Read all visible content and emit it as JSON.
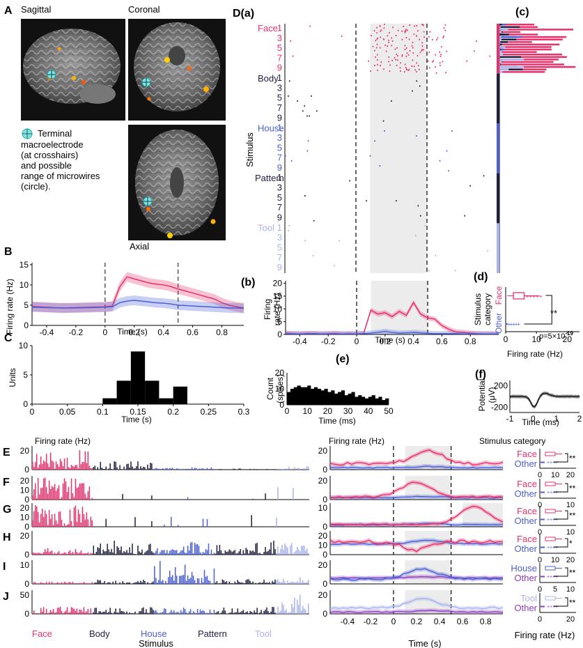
{
  "colors": {
    "face": "#e8316b",
    "body": "#1c1f3e",
    "house": "#4a5fd4",
    "pattern": "#1c1f3e",
    "tool": "#a8b3ec",
    "other": "#4a5fd4",
    "other_violet": "#8e3bbf",
    "black": "#000000"
  },
  "panelA": {
    "letter": "A",
    "sagittal": "Sagittal",
    "coronal": "Coronal",
    "axial": "Axial",
    "legend_lines": [
      "Terminal",
      "macroelectrode",
      "(at crosshairs)",
      "and possible",
      "range of microwires",
      "(circle)."
    ]
  },
  "panelB": {
    "letter": "B",
    "ylabel": "Firing rate (Hz)",
    "xlabel": "Time (s)",
    "xticks": [
      "-0.4",
      "-0.2",
      "0",
      "0.2",
      "0.4",
      "0.6",
      "0.8"
    ],
    "yticks": [
      "0",
      "5",
      "10",
      "15"
    ],
    "chart_data": {
      "type": "line",
      "xlim": [
        -0.5,
        0.95
      ],
      "ylim": [
        0,
        15.5
      ],
      "x": [
        -0.5,
        -0.4,
        -0.3,
        -0.2,
        -0.1,
        0.0,
        0.05,
        0.1,
        0.15,
        0.2,
        0.25,
        0.3,
        0.35,
        0.4,
        0.45,
        0.5,
        0.55,
        0.6,
        0.65,
        0.7,
        0.75,
        0.8,
        0.85,
        0.9,
        0.95
      ],
      "series": [
        {
          "color_key": "face",
          "values": [
            4.7,
            4.5,
            4.3,
            4.4,
            4.5,
            4.6,
            4.8,
            9.5,
            12.0,
            11.5,
            11.0,
            10.5,
            10.2,
            10.0,
            9.6,
            9.0,
            8.5,
            8.0,
            7.5,
            7.0,
            6.5,
            5.6,
            5.0,
            4.6,
            4.3
          ]
        },
        {
          "color_key": "other",
          "values": [
            4.5,
            4.4,
            4.3,
            4.3,
            4.4,
            4.5,
            4.6,
            5.6,
            6.0,
            6.2,
            6.0,
            5.8,
            5.6,
            5.5,
            5.3,
            5.0,
            4.9,
            4.8,
            4.7,
            4.6,
            4.5,
            4.4,
            4.3,
            4.3,
            4.2
          ]
        }
      ]
    }
  },
  "panelC": {
    "letter": "C",
    "ylabel": "Units",
    "xlabel": "Time (s)",
    "xticks": [
      "0",
      "0.05",
      "0.1",
      "0.15",
      "0.2",
      "0.25",
      "0.3"
    ],
    "yticks": [
      "0",
      "5",
      "10"
    ],
    "chart_data": {
      "type": "bar",
      "xlim": [
        0,
        0.3
      ],
      "ylim": [
        0,
        10
      ],
      "bin_starts": [
        0.1,
        0.12,
        0.14,
        0.16,
        0.18,
        0.2
      ],
      "bin_width": 0.02,
      "values": [
        1,
        4,
        9,
        4,
        1,
        3
      ]
    }
  },
  "panelD": {
    "title": "D(a)",
    "ylabel": "Stimulus",
    "categories": [
      {
        "name": "Face",
        "color_key": "face",
        "nums": [
          "1",
          "3",
          "5",
          "7",
          "9"
        ]
      },
      {
        "name": "Body",
        "color_key": "body",
        "nums": [
          "1",
          "3",
          "5",
          "7",
          "9"
        ]
      },
      {
        "name": "House",
        "color_key": "house",
        "nums": [
          "1",
          "3",
          "5",
          "7",
          "9"
        ]
      },
      {
        "name": "Pattern",
        "color_key": "pattern",
        "nums": [
          "1",
          "3",
          "5",
          "7",
          "9"
        ]
      },
      {
        "name": "Tool",
        "color_key": "tool",
        "nums": [
          "1",
          "3",
          "5",
          "7",
          "9"
        ]
      }
    ]
  },
  "panelDb": {
    "letter": "(b)",
    "ylabel1": "Firing",
    "ylabel2": "rate (Hz)",
    "xlabel": "Time (s)",
    "xticks": [
      "-0.4",
      "-0.2",
      "0",
      "0.2",
      "0.4",
      "0.6",
      "0.8"
    ],
    "yticks": [
      "0",
      "5",
      "10",
      "15",
      "20"
    ],
    "chart_data": {
      "type": "line",
      "xlim": [
        -0.5,
        1.0
      ],
      "ylim": [
        0,
        21
      ],
      "x": [
        -0.5,
        -0.45,
        -0.4,
        -0.35,
        -0.3,
        -0.25,
        -0.2,
        -0.15,
        -0.1,
        -0.05,
        0.0,
        0.05,
        0.1,
        0.15,
        0.2,
        0.25,
        0.3,
        0.35,
        0.4,
        0.45,
        0.5,
        0.55,
        0.6,
        0.65,
        0.7,
        0.75,
        0.8,
        0.85,
        0.9,
        0.95,
        1.0
      ],
      "series": [
        {
          "color_key": "face",
          "values": [
            0.5,
            0.3,
            0.2,
            0.4,
            0.3,
            0.2,
            0.3,
            0.4,
            0.2,
            0.3,
            0.2,
            0.4,
            9.5,
            8.0,
            8.5,
            7.0,
            9.0,
            7.5,
            12.5,
            8.0,
            6.5,
            6.0,
            3.5,
            2.0,
            1.0,
            0.8,
            0.5,
            0.3,
            0.2,
            0.2,
            0.2
          ]
        },
        {
          "color_key": "other",
          "values": [
            0.3,
            0.2,
            0.2,
            0.2,
            0.3,
            0.2,
            0.2,
            0.2,
            0.2,
            0.2,
            0.2,
            0.3,
            0.5,
            0.8,
            1.2,
            0.8,
            0.5,
            0.6,
            0.8,
            0.6,
            0.4,
            0.3,
            0.3,
            0.3,
            0.3,
            0.2,
            0.2,
            0.2,
            0.2,
            0.2,
            0.2
          ]
        }
      ]
    }
  },
  "panelDc": {
    "letter": "(c)"
  },
  "panelDd": {
    "letter": "(d)",
    "ylabel1": "Stimulus",
    "ylabel2": "category",
    "face": "Face",
    "other": "Other",
    "xlabel": "Firing rate (Hz)",
    "xticks": [
      "0",
      "10",
      "20"
    ],
    "sig": "**",
    "pval_prefix": "p",
    "pval_value": "=5×10",
    "pval_exp": "-19"
  },
  "panelDe": {
    "letter": "(e)",
    "ylabel1": "Count",
    "ylabel2": "(spikes)",
    "xlabel": "Time (ms)",
    "xticks": [
      "0",
      "10",
      "20",
      "30",
      "40",
      "50"
    ],
    "yticks": [
      "0",
      "10",
      "20"
    ],
    "chart_data": {
      "type": "bar",
      "xlim": [
        0,
        50
      ],
      "ylim": [
        0,
        20
      ],
      "values": [
        8,
        10,
        11,
        12,
        11,
        11,
        12,
        10,
        11,
        10,
        9,
        10,
        8,
        9,
        7,
        8,
        9,
        6,
        7,
        8,
        5,
        6,
        5,
        4,
        5,
        6,
        4,
        5,
        3,
        4
      ]
    }
  },
  "panelDf": {
    "letter": "(f)",
    "ylabel1": "Potential",
    "ylabel2": "(μV)",
    "xlabel": "Time (ms)",
    "xticks": [
      "-1",
      "0",
      "1",
      "2"
    ],
    "yticks": [
      "200",
      "-200"
    ]
  },
  "panelsEJ": {
    "rows": [
      {
        "letter": "E",
        "yticks": [
          "0",
          "20"
        ],
        "rate_yticks": [
          "0",
          "20"
        ],
        "cats": [
          "Face",
          "Other"
        ],
        "cat_keys": [
          "face",
          "other"
        ],
        "sig": "**",
        "xticks": [
          "0",
          "10",
          "20"
        ]
      },
      {
        "letter": "F",
        "yticks": [
          "0",
          "10",
          "20"
        ],
        "rate_yticks": [
          "0",
          "20"
        ],
        "cats": [
          "Face",
          "Other"
        ],
        "cat_keys": [
          "face",
          "other"
        ],
        "sig": "**",
        "xticks": [
          "0",
          "10"
        ]
      },
      {
        "letter": "G",
        "yticks": [
          "0",
          "10",
          "20"
        ],
        "rate_yticks": [
          "0",
          "10"
        ],
        "cats": [
          "Face",
          "Other"
        ],
        "cat_keys": [
          "face",
          "other"
        ],
        "sig": "**",
        "xticks": [
          "0",
          "10"
        ]
      },
      {
        "letter": "H",
        "yticks": [
          "0",
          "20"
        ],
        "rate_yticks": [
          "0",
          "10",
          "20"
        ],
        "cats": [
          "Face",
          "Other"
        ],
        "cat_keys": [
          "face",
          "other"
        ],
        "sig": "*",
        "xticks": [
          "0",
          "10",
          "20"
        ]
      },
      {
        "letter": "I",
        "yticks": [
          "0",
          "10"
        ],
        "rate_yticks": [
          "0",
          "20"
        ],
        "cats": [
          "House",
          "Other"
        ],
        "cat_keys": [
          "house",
          "other_violet"
        ],
        "sig": "**",
        "xticks": [
          "0",
          "5",
          "10"
        ]
      },
      {
        "letter": "J",
        "yticks": [
          "0",
          "50"
        ],
        "rate_yticks": [
          "0",
          "20"
        ],
        "cats": [
          "Tool",
          "Other"
        ],
        "cat_keys": [
          "tool",
          "other_violet"
        ],
        "sig": "**",
        "xticks": [
          "0",
          "20"
        ]
      }
    ],
    "ras_label": "Firing rate (Hz)",
    "rate_label": "Firing rate (Hz)",
    "cat_label": "Stimulus category",
    "stim_cats": [
      "Face",
      "Body",
      "House",
      "Pattern",
      "Tool"
    ],
    "stim_xlabel": "Stimulus",
    "time_xlabel": "Time (s)",
    "time_xticks": [
      "-0.4",
      "-0.2",
      "0",
      "0.2",
      "0.4",
      "0.6",
      "0.8"
    ],
    "fr_xlabel": "Firing rate (Hz)"
  }
}
